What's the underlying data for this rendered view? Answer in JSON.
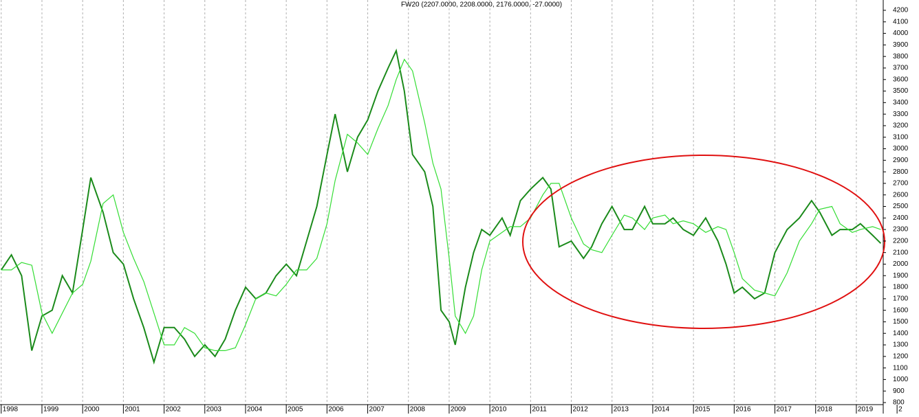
{
  "chart_data": {
    "type": "line",
    "title": "FW20 (2207.0000, 2208.0000, 2176.0000, -27.0000)",
    "x": [
      1998.0,
      1998.25,
      1998.5,
      1998.75,
      1999.0,
      1999.25,
      1999.5,
      1999.75,
      2000.0,
      2000.2,
      2000.5,
      2000.75,
      2001.0,
      2001.25,
      2001.5,
      2001.75,
      2002.0,
      2002.25,
      2002.5,
      2002.75,
      2003.0,
      2003.25,
      2003.5,
      2003.75,
      2004.0,
      2004.25,
      2004.5,
      2004.75,
      2005.0,
      2005.25,
      2005.5,
      2005.75,
      2006.0,
      2006.2,
      2006.5,
      2006.75,
      2007.0,
      2007.25,
      2007.5,
      2007.7,
      2007.9,
      2008.1,
      2008.4,
      2008.6,
      2008.8,
      2009.0,
      2009.15,
      2009.4,
      2009.6,
      2009.8,
      2010.0,
      2010.3,
      2010.5,
      2010.75,
      2011.0,
      2011.3,
      2011.5,
      2011.7,
      2012.0,
      2012.3,
      2012.5,
      2012.75,
      2013.0,
      2013.3,
      2013.5,
      2013.8,
      2014.0,
      2014.3,
      2014.5,
      2014.75,
      2015.0,
      2015.3,
      2015.6,
      2015.8,
      2016.0,
      2016.2,
      2016.5,
      2016.75,
      2017.0,
      2017.3,
      2017.6,
      2017.9,
      2018.1,
      2018.4,
      2018.6,
      2018.9,
      2019.1,
      2019.4,
      2019.6
    ],
    "series": [
      {
        "color": "#1a8a1a",
        "values": [
          1950,
          2080,
          1900,
          1250,
          1550,
          1600,
          1900,
          1750,
          2300,
          2750,
          2450,
          2100,
          2000,
          1700,
          1450,
          1150,
          1450,
          1450,
          1350,
          1200,
          1300,
          1200,
          1350,
          1600,
          1800,
          1700,
          1750,
          1900,
          2000,
          1900,
          2200,
          2500,
          2950,
          3300,
          2800,
          3100,
          3250,
          3500,
          3700,
          3850,
          3500,
          2950,
          2800,
          2500,
          1600,
          1500,
          1300,
          1800,
          2100,
          2300,
          2250,
          2400,
          2250,
          2550,
          2650,
          2750,
          2650,
          2150,
          2200,
          2050,
          2150,
          2350,
          2500,
          2300,
          2300,
          2500,
          2350,
          2350,
          2400,
          2300,
          2250,
          2400,
          2200,
          2000,
          1750,
          1800,
          1700,
          1750,
          2100,
          2300,
          2400,
          2550,
          2450,
          2250,
          2300,
          2300,
          2350,
          2250,
          2180
        ]
      },
      {
        "color": "#33dd33",
        "values": [
          1950,
          1950,
          2015,
          1990,
          1575,
          1400,
          1575,
          1750,
          1825,
          2025,
          2525,
          2600,
          2275,
          2050,
          1850,
          1575,
          1300,
          1300,
          1450,
          1400,
          1275,
          1250,
          1250,
          1275,
          1475,
          1700,
          1750,
          1725,
          1825,
          1950,
          1950,
          2050,
          2350,
          2725,
          3125,
          3050,
          2950,
          3175,
          3375,
          3600,
          3775,
          3675,
          3225,
          2875,
          2650,
          2050,
          1550,
          1400,
          1550,
          1950,
          2200,
          2275,
          2325,
          2325,
          2400,
          2600,
          2700,
          2700,
          2400,
          2175,
          2125,
          2100,
          2250,
          2425,
          2400,
          2300,
          2400,
          2425,
          2350,
          2375,
          2350,
          2275,
          2325,
          2300,
          2100,
          1875,
          1775,
          1750,
          1725,
          1925,
          2200,
          2350,
          2475,
          2500,
          2350,
          2275,
          2300,
          2325,
          2300
        ]
      }
    ],
    "xlim": [
      1997.97,
      2019.66
    ],
    "xticks": [
      1998,
      1999,
      2000,
      2001,
      2002,
      2003,
      2004,
      2005,
      2006,
      2007,
      2008,
      2009,
      2010,
      2011,
      2012,
      2013,
      2014,
      2015,
      2016,
      2017,
      2018,
      2019,
      {
        "value": 2020,
        "label": "2"
      }
    ],
    "ylim": [
      800,
      4200
    ],
    "yticks": [
      800,
      900,
      1000,
      1100,
      1200,
      1300,
      1400,
      1500,
      1600,
      1700,
      1800,
      1900,
      2000,
      2100,
      2200,
      2300,
      2400,
      2500,
      2600,
      2700,
      2800,
      2900,
      3000,
      3100,
      3200,
      3300,
      3400,
      3500,
      3600,
      3700,
      3800,
      3900,
      4000,
      4100,
      4200
    ],
    "grid": true
  }
}
